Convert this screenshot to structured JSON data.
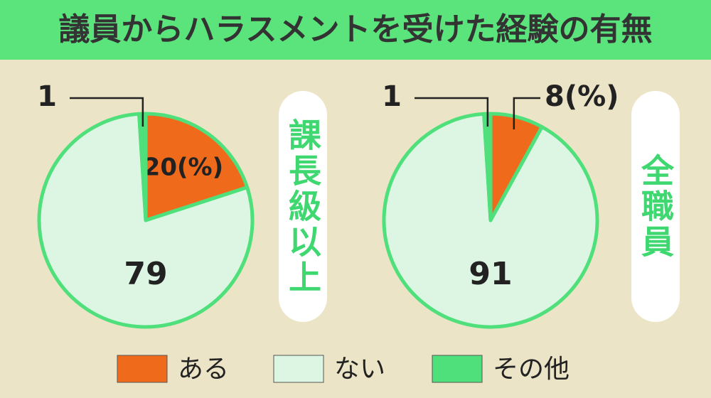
{
  "title": "議員からハラスメントを受けた経験の有無",
  "chart_data": [
    {
      "type": "pie",
      "label": "課長級以上",
      "categories": [
        "ある",
        "ない",
        "その他"
      ],
      "values": [
        20,
        79,
        1
      ],
      "value_labels": [
        "20(%)",
        "79",
        "1"
      ],
      "colors": [
        "#f06a1c",
        "#dcf6e3",
        "#4fe07c"
      ]
    },
    {
      "type": "pie",
      "label": "全職員",
      "categories": [
        "ある",
        "ない",
        "その他"
      ],
      "values": [
        8,
        91,
        1
      ],
      "value_labels": [
        "8(%)",
        "91",
        "1"
      ],
      "colors": [
        "#f06a1c",
        "#dcf6e3",
        "#4fe07c"
      ]
    }
  ]
}
